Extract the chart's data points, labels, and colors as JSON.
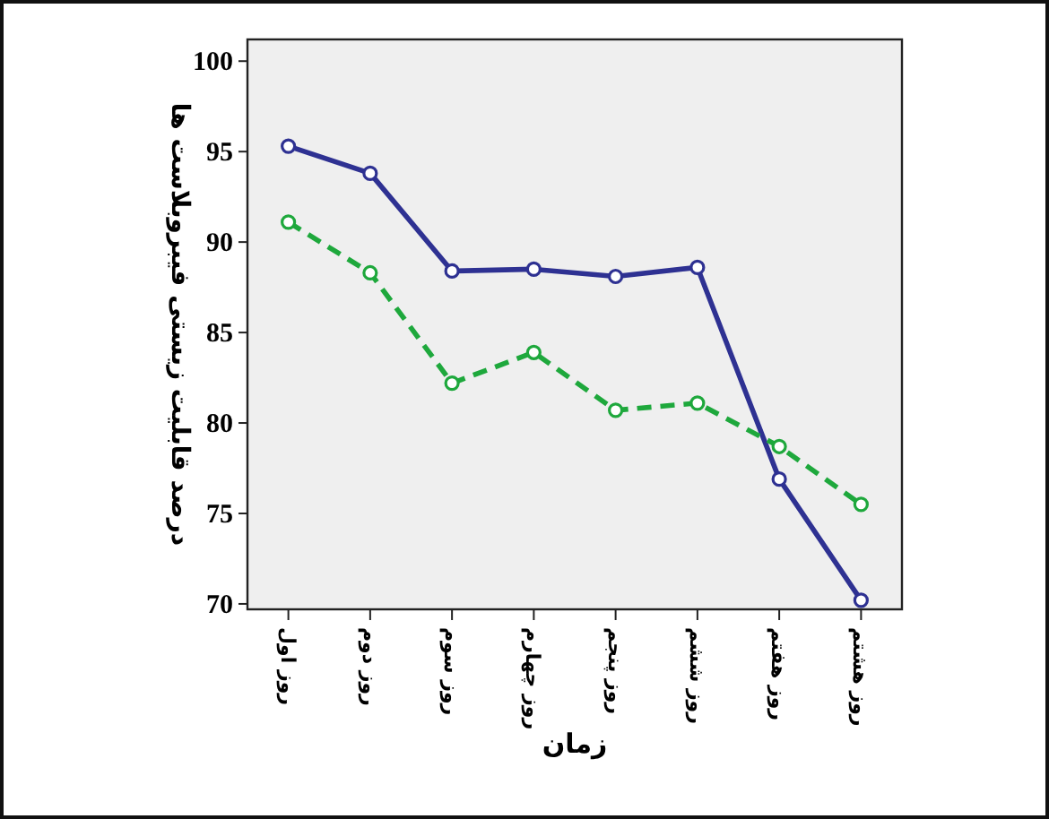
{
  "chart_data": {
    "type": "line",
    "xlabel": "زمان",
    "ylabel": "درصد قابلیت زیستی فیبروبلاست ها",
    "categories": [
      "روز اول",
      "روز دوم",
      "روز سوم",
      "روز چهارم",
      "روز پنجم",
      "روز ششم",
      "روز هفتم",
      "روز هشتم"
    ],
    "series": [
      {
        "color": "#2e3192",
        "line_style": "solid",
        "values": [
          95.3,
          93.8,
          88.4,
          88.5,
          88.1,
          88.6,
          76.9,
          70.2
        ]
      },
      {
        "color": "#1ea83c",
        "line_style": "dashed",
        "values": [
          91.1,
          88.3,
          82.2,
          83.9,
          80.7,
          81.1,
          78.7,
          75.5
        ]
      }
    ],
    "ylim": [
      69.7,
      101.2
    ],
    "yticks": [
      70,
      75,
      80,
      85,
      90,
      95,
      100
    ],
    "marker": "circle",
    "grid": false
  }
}
